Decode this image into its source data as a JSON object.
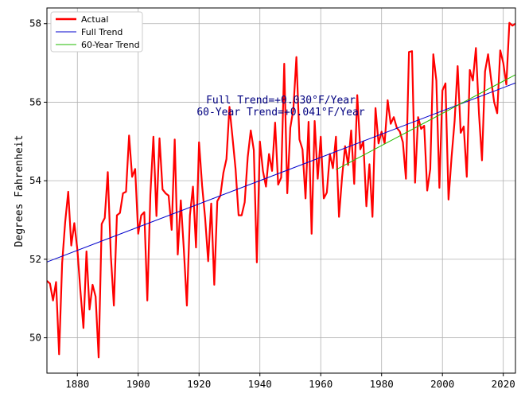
{
  "chart_data": {
    "type": "line",
    "title": "",
    "xlabel": "",
    "ylabel": "Degrees Fahrenheit",
    "xlim": [
      1870,
      2024
    ],
    "ylim": [
      49.1,
      58.4
    ],
    "xticks": [
      1880,
      1900,
      1920,
      1940,
      1960,
      1980,
      2000,
      2020
    ],
    "yticks": [
      50,
      52,
      54,
      56,
      58
    ],
    "grid": true,
    "legend_position": "top-left",
    "annotations": [
      "Full Trend=+0.030°F/Year",
      "60-Year Trend=+0.041°F/Year"
    ],
    "colors": {
      "actual": "#ff0000",
      "full_trend": "#0000cc",
      "sixty_year_trend": "#22bb00",
      "grid": "#b0b0b0",
      "annotation": "#000080"
    },
    "series": [
      {
        "name": "Actual",
        "x": [
          1870,
          1871,
          1872,
          1873,
          1874,
          1875,
          1876,
          1877,
          1878,
          1879,
          1880,
          1881,
          1882,
          1883,
          1884,
          1885,
          1886,
          1887,
          1888,
          1889,
          1890,
          1891,
          1892,
          1893,
          1894,
          1895,
          1896,
          1897,
          1898,
          1899,
          1900,
          1901,
          1902,
          1903,
          1904,
          1905,
          1906,
          1907,
          1908,
          1909,
          1910,
          1911,
          1912,
          1913,
          1914,
          1915,
          1916,
          1917,
          1918,
          1919,
          1920,
          1921,
          1922,
          1923,
          1924,
          1925,
          1926,
          1927,
          1928,
          1929,
          1930,
          1931,
          1932,
          1933,
          1934,
          1935,
          1936,
          1937,
          1938,
          1939,
          1940,
          1941,
          1942,
          1943,
          1944,
          1945,
          1946,
          1947,
          1948,
          1949,
          1950,
          1951,
          1952,
          1953,
          1954,
          1955,
          1956,
          1957,
          1958,
          1959,
          1960,
          1961,
          1962,
          1963,
          1964,
          1965,
          1966,
          1967,
          1968,
          1969,
          1970,
          1971,
          1972,
          1973,
          1974,
          1975,
          1976,
          1977,
          1978,
          1979,
          1980,
          1981,
          1982,
          1983,
          1984,
          1985,
          1986,
          1987,
          1988,
          1989,
          1990,
          1991,
          1992,
          1993,
          1994,
          1995,
          1996,
          1997,
          1998,
          1999,
          2000,
          2001,
          2002,
          2003,
          2004,
          2005,
          2006,
          2007,
          2008,
          2009,
          2010,
          2011,
          2012,
          2013,
          2014,
          2015,
          2016,
          2017,
          2018,
          2019,
          2020,
          2021,
          2022,
          2023,
          2024
        ],
        "values": [
          51.45,
          51.38,
          50.95,
          51.42,
          49.58,
          51.9,
          52.95,
          53.72,
          52.35,
          52.92,
          52.25,
          51.2,
          50.25,
          52.2,
          50.72,
          51.35,
          51.05,
          49.5,
          52.9,
          53.05,
          54.22,
          52.1,
          50.82,
          53.12,
          53.18,
          53.68,
          53.72,
          55.15,
          54.1,
          54.3,
          52.65,
          53.12,
          53.2,
          50.95,
          53.65,
          55.12,
          53.1,
          55.08,
          53.78,
          53.68,
          53.62,
          52.75,
          55.05,
          52.12,
          53.5,
          52.25,
          50.82,
          53.12,
          53.85,
          52.3,
          54.98,
          53.88,
          53.05,
          51.95,
          53.42,
          51.35,
          53.48,
          53.62,
          54.2,
          54.55,
          55.88,
          55.1,
          54.3,
          53.12,
          53.12,
          53.45,
          54.6,
          55.28,
          54.78,
          51.92,
          55.0,
          54.25,
          53.85,
          54.68,
          54.25,
          55.48,
          53.9,
          54.08,
          56.98,
          53.68,
          55.35,
          55.82,
          57.15,
          55.05,
          54.8,
          53.55,
          55.5,
          52.65,
          55.52,
          54.05,
          55.12,
          53.55,
          53.7,
          54.68,
          54.32,
          55.12,
          53.08,
          54.08,
          54.88,
          54.4,
          55.28,
          53.92,
          56.18,
          54.8,
          55.0,
          53.35,
          54.42,
          53.08,
          55.85,
          54.95,
          55.25,
          54.95,
          56.05,
          55.45,
          55.62,
          55.35,
          55.25,
          54.98,
          54.05,
          57.28,
          57.3,
          53.95,
          55.62,
          55.32,
          55.4,
          53.75,
          54.3,
          57.22,
          56.55,
          53.82,
          56.3,
          56.48,
          53.52,
          54.6,
          55.52,
          56.92,
          55.22,
          55.38,
          54.1,
          56.82,
          56.55,
          57.38,
          55.72,
          54.52,
          56.78,
          57.22,
          56.58,
          56.0,
          55.72,
          57.32,
          57.0,
          56.45,
          58.02,
          57.95,
          58.0
        ]
      },
      {
        "name": "Full Trend",
        "x": [
          1870,
          2024
        ],
        "values": [
          51.93,
          56.49
        ]
      },
      {
        "name": "60-Year Trend",
        "x": [
          1965,
          2024
        ],
        "values": [
          54.28,
          56.7
        ]
      }
    ]
  }
}
